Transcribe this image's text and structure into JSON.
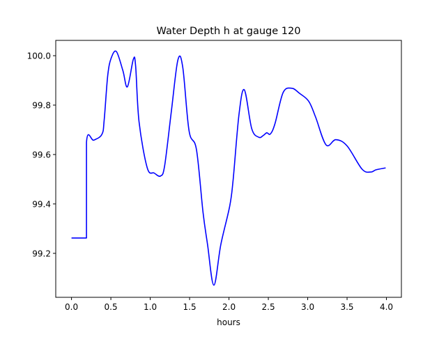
{
  "chart_data": {
    "type": "line",
    "title": "Water Depth h at gauge 120",
    "xlabel": "hours",
    "ylabel": "",
    "xlim": [
      -0.2,
      4.19
    ],
    "ylim": [
      99.022,
      100.062
    ],
    "grid": false,
    "xticks": [
      0.0,
      0.5,
      1.0,
      1.5,
      2.0,
      2.5,
      3.0,
      3.5,
      4.0
    ],
    "xtick_labels": [
      "0.0",
      "0.5",
      "1.0",
      "1.5",
      "2.0",
      "2.5",
      "3.0",
      "3.5",
      "4.0"
    ],
    "yticks": [
      99.2,
      99.4,
      99.6,
      99.8,
      100.0
    ],
    "ytick_labels": [
      "99.2",
      "99.4",
      "99.6",
      "99.8",
      "100.0"
    ],
    "series": [
      {
        "name": "h",
        "color": "#0000ff",
        "x": [
          0.0,
          0.19,
          0.19,
          0.283,
          0.387,
          0.416,
          0.46,
          0.504,
          0.57,
          0.652,
          0.71,
          0.785,
          0.814,
          0.858,
          0.962,
          1.05,
          1.13,
          1.183,
          1.27,
          1.351,
          1.413,
          1.493,
          1.587,
          1.67,
          1.728,
          1.808,
          1.897,
          2.01,
          2.053,
          2.127,
          2.195,
          2.289,
          2.378,
          2.436,
          2.48,
          2.525,
          2.584,
          2.688,
          2.8,
          2.894,
          3.012,
          3.1,
          3.233,
          3.357,
          3.5,
          3.69,
          3.8,
          3.867,
          3.99
        ],
        "y": [
          99.262,
          99.262,
          99.649,
          99.658,
          99.682,
          99.743,
          99.92,
          99.99,
          100.017,
          99.94,
          99.874,
          99.985,
          99.959,
          99.733,
          99.546,
          99.525,
          99.513,
          99.555,
          99.78,
          99.982,
          99.954,
          99.696,
          99.62,
          99.367,
          99.236,
          99.071,
          99.236,
          99.392,
          99.499,
          99.761,
          99.862,
          99.705,
          99.67,
          99.677,
          99.688,
          99.683,
          99.724,
          99.851,
          99.868,
          99.848,
          99.816,
          99.752,
          99.639,
          99.66,
          99.635,
          99.541,
          99.529,
          99.538,
          99.546
        ]
      }
    ]
  }
}
